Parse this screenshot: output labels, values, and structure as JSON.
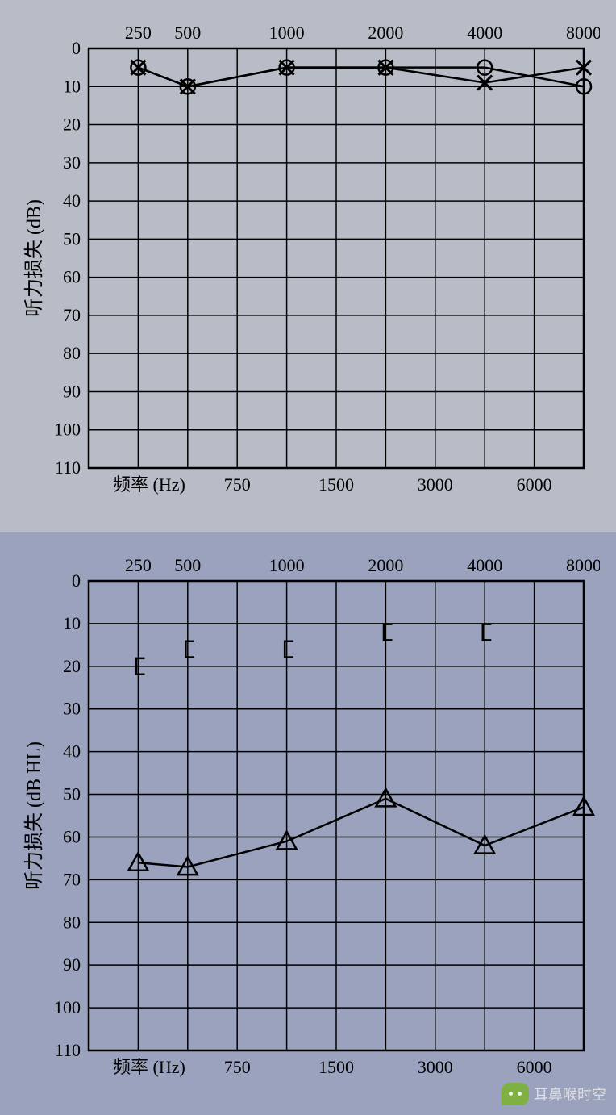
{
  "chart1": {
    "type": "audiogram-line",
    "background_color": "#b8bcc6",
    "plot_border_color": "#000000",
    "grid_color": "#000000",
    "grid_line_width": 1.5,
    "x_top_ticks": [
      250,
      500,
      1000,
      2000,
      4000,
      8000
    ],
    "x_bottom_label": "频率 (Hz)",
    "x_bottom_ticks": [
      750,
      1500,
      3000,
      6000
    ],
    "y_label": "听力损失 (dB)",
    "y_ticks": [
      0,
      10,
      20,
      30,
      40,
      50,
      60,
      70,
      80,
      90,
      100,
      110
    ],
    "ylim": [
      0,
      110
    ],
    "freq_positions": [
      125,
      250,
      500,
      750,
      1000,
      1500,
      2000,
      3000,
      4000,
      6000,
      8000
    ],
    "series": [
      {
        "name": "right-ear-air",
        "marker": "circle",
        "marker_size": 9,
        "line_width": 2.5,
        "color": "#000000",
        "points": [
          {
            "freq": 250,
            "db": 5
          },
          {
            "freq": 500,
            "db": 10
          },
          {
            "freq": 1000,
            "db": 5
          },
          {
            "freq": 2000,
            "db": 5
          },
          {
            "freq": 4000,
            "db": 5
          },
          {
            "freq": 8000,
            "db": 10
          }
        ]
      },
      {
        "name": "left-ear-air",
        "marker": "x",
        "marker_size": 9,
        "line_width": 2.5,
        "color": "#000000",
        "points": [
          {
            "freq": 250,
            "db": 5
          },
          {
            "freq": 500,
            "db": 10
          },
          {
            "freq": 1000,
            "db": 5
          },
          {
            "freq": 2000,
            "db": 5
          },
          {
            "freq": 4000,
            "db": 9
          },
          {
            "freq": 8000,
            "db": 5
          }
        ]
      }
    ],
    "tick_fontsize": 22,
    "label_fontsize": 24
  },
  "chart2": {
    "type": "audiogram-line",
    "background_color": "#9ba2bd",
    "plot_border_color": "#000000",
    "grid_color": "#000000",
    "grid_line_width": 1.5,
    "x_top_ticks": [
      250,
      500,
      1000,
      2000,
      4000,
      8000
    ],
    "x_bottom_label": "频率 (Hz)",
    "x_bottom_ticks": [
      750,
      1500,
      3000,
      6000
    ],
    "y_label": "听力损失 (dB HL)",
    "y_ticks": [
      0,
      10,
      20,
      30,
      40,
      50,
      60,
      70,
      80,
      90,
      100,
      110
    ],
    "ylim": [
      0,
      110
    ],
    "freq_positions": [
      125,
      250,
      500,
      750,
      1000,
      1500,
      2000,
      3000,
      4000,
      6000,
      8000
    ],
    "series": [
      {
        "name": "right-bone-masked",
        "marker": "bracket",
        "marker_size": 9,
        "line_width": 0,
        "color": "#000000",
        "connected": false,
        "points": [
          {
            "freq": 250,
            "db": 20
          },
          {
            "freq": 500,
            "db": 16
          },
          {
            "freq": 1000,
            "db": 16
          },
          {
            "freq": 2000,
            "db": 12
          },
          {
            "freq": 4000,
            "db": 12
          }
        ]
      },
      {
        "name": "right-air-masked",
        "marker": "triangle",
        "marker_size": 10,
        "line_width": 2.5,
        "color": "#000000",
        "connected": true,
        "points": [
          {
            "freq": 250,
            "db": 66
          },
          {
            "freq": 500,
            "db": 67
          },
          {
            "freq": 1000,
            "db": 61
          },
          {
            "freq": 2000,
            "db": 51
          },
          {
            "freq": 4000,
            "db": 62
          },
          {
            "freq": 8000,
            "db": 53
          }
        ]
      }
    ],
    "tick_fontsize": 22,
    "label_fontsize": 24
  },
  "watermark": {
    "text": "耳鼻喉时空",
    "icon": "wechat-icon",
    "color": "#e8e8e8"
  }
}
